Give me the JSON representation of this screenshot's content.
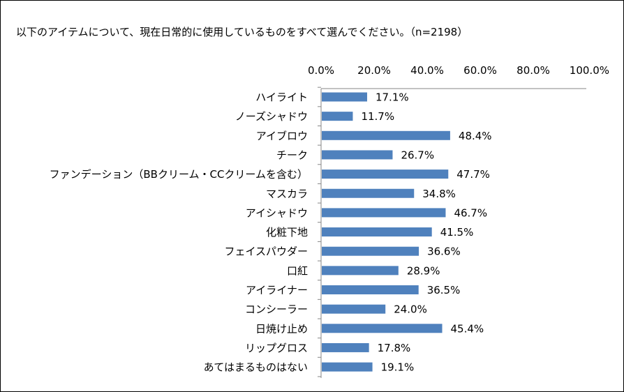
{
  "chart_data": {
    "type": "bar",
    "orientation": "horizontal",
    "title": "以下のアイテムについて、現在日常的に使用しているものをすべて選んでください。（n=2198）",
    "xlabel": "",
    "ylabel": "",
    "xlim": [
      0,
      100
    ],
    "axis_position": "top",
    "grid": false,
    "legend": "none",
    "bar_color": "#4F81BD",
    "ticks": [
      "0.0%",
      "20.0%",
      "40.0%",
      "60.0%",
      "80.0%",
      "100.0%"
    ],
    "tick_values": [
      0,
      20,
      40,
      60,
      80,
      100
    ],
    "categories": [
      "ハイライト",
      "ノーズシャドウ",
      "アイブロウ",
      "チーク",
      "ファンデーション（BBクリーム・CCクリームを含む）",
      "マスカラ",
      "アイシャドウ",
      "化粧下地",
      "フェイスパウダー",
      "口紅",
      "アイライナー",
      "コンシーラー",
      "日焼け止め",
      "リップグロス",
      "あてはまるものはない"
    ],
    "values": [
      17.1,
      11.7,
      48.4,
      26.7,
      47.7,
      34.8,
      46.7,
      41.5,
      36.6,
      28.9,
      36.5,
      24.0,
      45.4,
      17.8,
      19.1
    ],
    "value_labels": [
      "17.1%",
      "11.7%",
      "48.4%",
      "26.7%",
      "47.7%",
      "34.8%",
      "46.7%",
      "41.5%",
      "36.6%",
      "28.9%",
      "36.5%",
      "24.0%",
      "45.4%",
      "17.8%",
      "19.1%"
    ]
  }
}
